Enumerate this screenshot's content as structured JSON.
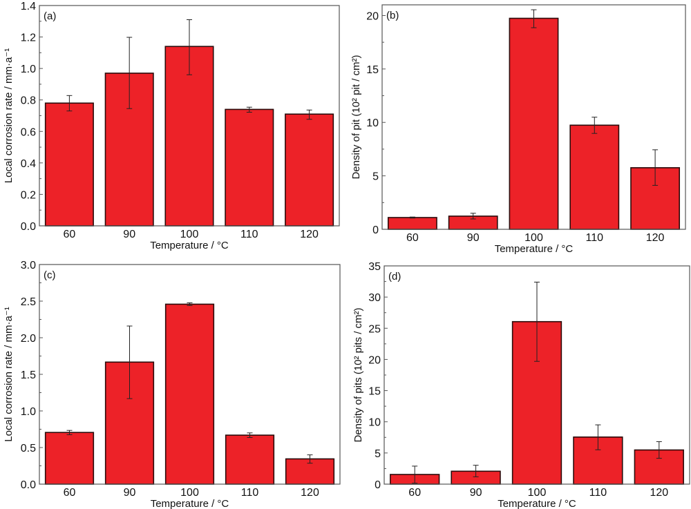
{
  "bar_color": "#ED2228",
  "chart_data": [
    {
      "type": "bar",
      "panel_label": "(a)",
      "categories": [
        "60",
        "90",
        "100",
        "110",
        "120"
      ],
      "values": [
        0.78,
        0.97,
        1.14,
        0.74,
        0.71
      ],
      "error_low": [
        0.73,
        0.745,
        0.96,
        0.722,
        0.677
      ],
      "error_high": [
        0.828,
        1.198,
        1.31,
        0.754,
        0.736
      ],
      "xlabel": "Temperature / °C",
      "ylabel": "Local corrosion rate / mm·a⁻¹",
      "ylim": [
        0,
        1.4
      ],
      "yticks": [
        "0.0",
        "0.2",
        "0.4",
        "0.6",
        "0.8",
        "1.0",
        "1.2",
        "1.4"
      ],
      "grid": false
    },
    {
      "type": "bar",
      "panel_label": "(b)",
      "categories": [
        "60",
        "90",
        "100",
        "110",
        "120"
      ],
      "values": [
        1.1,
        1.23,
        19.74,
        9.74,
        5.76
      ],
      "error_low": [
        1.05,
        0.97,
        18.86,
        8.97,
        4.11
      ],
      "error_high": [
        1.15,
        1.5,
        20.54,
        10.49,
        7.44
      ],
      "xlabel": "Temperature / °C",
      "ylabel": "Density of pit (10² pit / cm²)",
      "ylim": [
        0,
        21
      ],
      "yticks": [
        "0",
        "5",
        "10",
        "15",
        "20"
      ],
      "grid": false
    },
    {
      "type": "bar",
      "panel_label": "(c)",
      "categories": [
        "60",
        "90",
        "100",
        "110",
        "120"
      ],
      "values": [
        0.706,
        1.667,
        2.458,
        0.669,
        0.345
      ],
      "error_low": [
        0.675,
        1.168,
        2.44,
        0.637,
        0.286
      ],
      "error_high": [
        0.734,
        2.16,
        2.477,
        0.7,
        0.4
      ],
      "xlabel": "Temperature / °C",
      "ylabel": "Local corrosion rate / mm·a⁻¹",
      "ylim": [
        0,
        3.0
      ],
      "yticks": [
        "0.0",
        "0.5",
        "1.0",
        "1.5",
        "2.0",
        "2.5",
        "3.0"
      ],
      "grid": false
    },
    {
      "type": "bar",
      "panel_label": "(d)",
      "categories": [
        "60",
        "90",
        "100",
        "110",
        "120"
      ],
      "values": [
        1.55,
        2.07,
        26.06,
        7.55,
        5.48
      ],
      "error_low": [
        0.15,
        1.18,
        19.69,
        5.51,
        4.14
      ],
      "error_high": [
        2.89,
        3.03,
        32.4,
        9.51,
        6.81
      ],
      "xlabel": "Temperature / °C",
      "ylabel": "Density of pits (10² pits / cm²)",
      "ylim": [
        0,
        35
      ],
      "yticks": [
        "0",
        "5",
        "10",
        "15",
        "20",
        "25",
        "30",
        "35"
      ],
      "grid": false
    }
  ]
}
